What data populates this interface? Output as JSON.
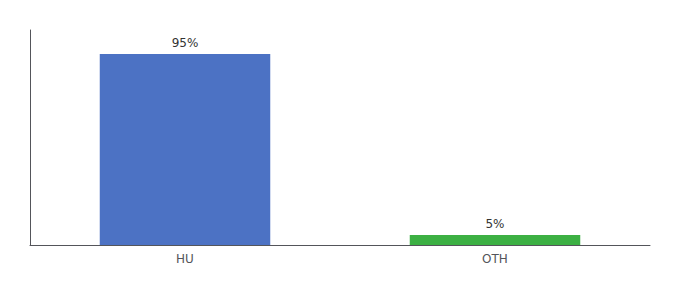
{
  "chart_data": {
    "type": "bar",
    "categories": [
      "HU",
      "OTH"
    ],
    "values": [
      95,
      5
    ],
    "value_labels": [
      "95%",
      "5%"
    ],
    "colors": [
      "#4c72c4",
      "#3cb043"
    ],
    "ylim": [
      0,
      107
    ],
    "grid": false,
    "data_labels": true,
    "tick_labels": "x"
  }
}
